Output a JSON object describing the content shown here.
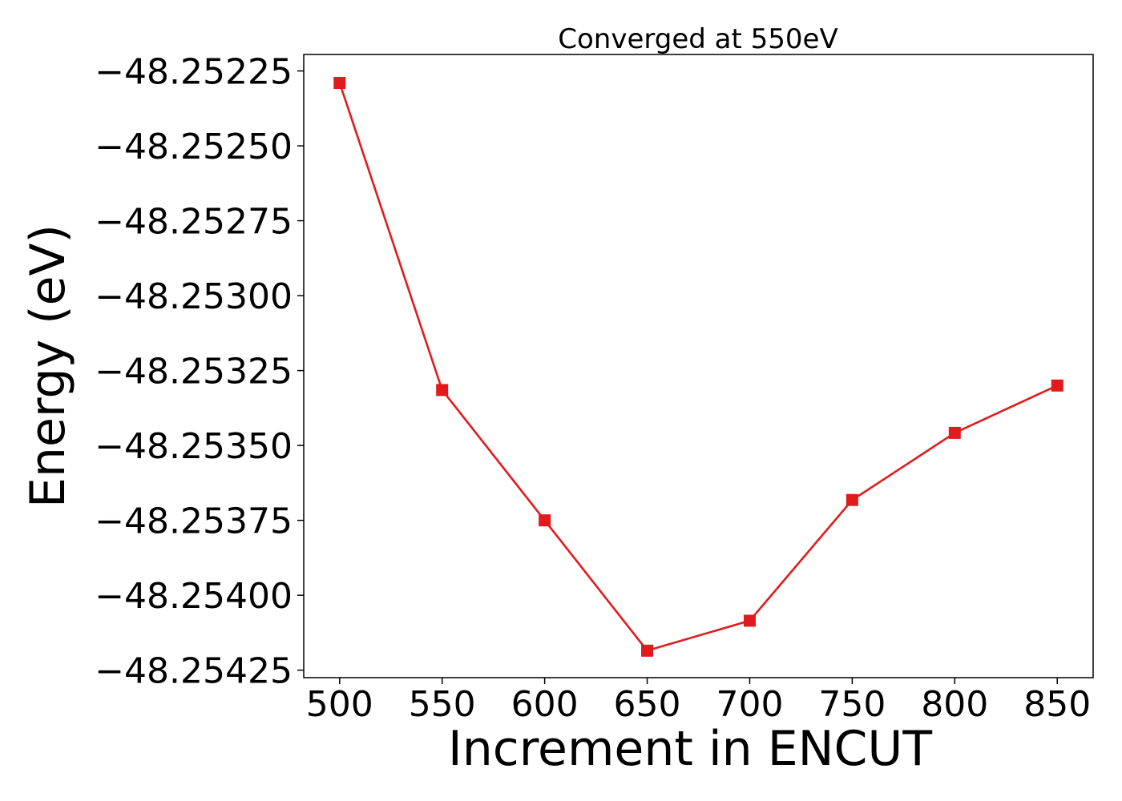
{
  "chart_data": {
    "type": "line",
    "title": "Converged at 550eV",
    "xlabel": "Increment in ENCUT",
    "ylabel": "Energy (eV)",
    "x": [
      500,
      550,
      600,
      650,
      700,
      750,
      800,
      850
    ],
    "series": [
      {
        "values": [
          -48.25229,
          -48.253315,
          -48.25375,
          -48.254185,
          -48.254085,
          -48.253682,
          -48.253458,
          -48.2533
        ],
        "color": "#e31a1c",
        "marker": "square"
      }
    ],
    "xticks": [
      500,
      550,
      600,
      650,
      700,
      750,
      800,
      850
    ],
    "xtick_labels": [
      "500",
      "550",
      "600",
      "650",
      "700",
      "750",
      "800",
      "850"
    ],
    "yticks": [
      -48.25225,
      -48.2525,
      -48.25275,
      -48.253,
      -48.25325,
      -48.2535,
      -48.25375,
      -48.254,
      -48.25425
    ],
    "ytick_labels": [
      "−48.25225",
      "−48.25250",
      "−48.25275",
      "−48.25300",
      "−48.25325",
      "−48.25350",
      "−48.25375",
      "−48.25400",
      "−48.25425"
    ],
    "xlim": [
      482.5,
      867.5
    ],
    "ylim": [
      -48.254275,
      -48.252195
    ],
    "grid": false,
    "legend": false
  }
}
